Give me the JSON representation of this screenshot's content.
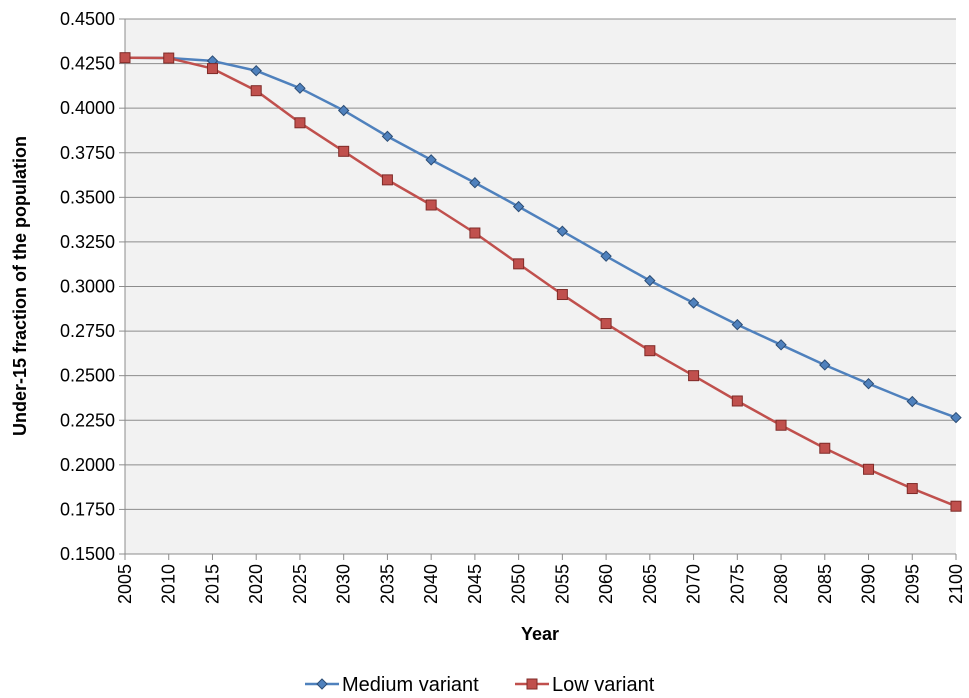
{
  "chart_data": {
    "type": "line",
    "title": "",
    "xlabel": "Year",
    "ylabel": "Under-15 fraction of the population",
    "x": [
      2005,
      2010,
      2015,
      2020,
      2025,
      2030,
      2035,
      2040,
      2045,
      2050,
      2055,
      2060,
      2065,
      2070,
      2075,
      2080,
      2085,
      2090,
      2095,
      2100
    ],
    "x_tick_labels": [
      "2005",
      "2010",
      "2015",
      "2020",
      "2025",
      "2030",
      "2035",
      "2040",
      "2045",
      "2050",
      "2055",
      "2060",
      "2065",
      "2070",
      "2075",
      "2080",
      "2085",
      "2090",
      "2095",
      "2100"
    ],
    "y_tick_labels": [
      "0.4500",
      "0.4250",
      "0.4000",
      "0.3750",
      "0.3500",
      "0.3250",
      "0.3000",
      "0.2750",
      "0.2500",
      "0.2250",
      "0.2000",
      "0.1750",
      "0.1500"
    ],
    "ylim": [
      0.15,
      0.45
    ],
    "ystep": 0.025,
    "grid": true,
    "legend_position": "bottom",
    "plot_background": "#f2f2f2",
    "series": [
      {
        "name": "Medium variant",
        "marker": "diamond",
        "color": "#4f81bd",
        "marker_fill": "#4f81bd",
        "marker_stroke": "#2c4d75",
        "values": [
          0.4283,
          0.4281,
          0.4265,
          0.421,
          0.4112,
          0.3987,
          0.3842,
          0.371,
          0.3582,
          0.3448,
          0.331,
          0.317,
          0.3033,
          0.2908,
          0.2786,
          0.2673,
          0.256,
          0.2455,
          0.2355,
          0.2265
        ]
      },
      {
        "name": "Low variant",
        "marker": "square",
        "color": "#c0504d",
        "marker_fill": "#c0504d",
        "marker_stroke": "#7f2b28",
        "values": [
          0.4283,
          0.4281,
          0.4222,
          0.4098,
          0.3918,
          0.3758,
          0.3598,
          0.3457,
          0.33,
          0.3127,
          0.2955,
          0.2792,
          0.264,
          0.25,
          0.2358,
          0.2222,
          0.2093,
          0.1975,
          0.1867,
          0.1768
        ]
      }
    ]
  }
}
